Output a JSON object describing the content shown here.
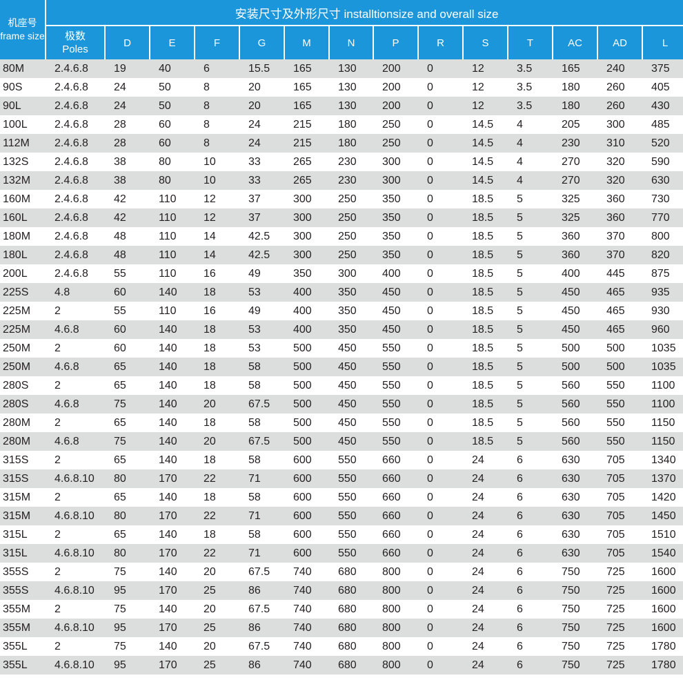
{
  "header": {
    "title": "安装尺寸及外形尺寸 installtionsize and overall size",
    "frame_cn": "机座号",
    "frame_en": "frame size",
    "poles_cn": "极数",
    "poles_en": "Poles",
    "columns": [
      "D",
      "E",
      "F",
      "G",
      "M",
      "N",
      "P",
      "R",
      "S",
      "T",
      "AC",
      "AD",
      "L"
    ]
  },
  "rows": [
    [
      "80M",
      "2.4.6.8",
      "19",
      "40",
      "6",
      "15.5",
      "165",
      "130",
      "200",
      "0",
      "12",
      "3.5",
      "165",
      "240",
      "375"
    ],
    [
      "90S",
      "2.4.6.8",
      "24",
      "50",
      "8",
      "20",
      "165",
      "130",
      "200",
      "0",
      "12",
      "3.5",
      "180",
      "260",
      "405"
    ],
    [
      "90L",
      "2.4.6.8",
      "24",
      "50",
      "8",
      "20",
      "165",
      "130",
      "200",
      "0",
      "12",
      "3.5",
      "180",
      "260",
      "430"
    ],
    [
      "100L",
      "2.4.6.8",
      "28",
      "60",
      "8",
      "24",
      "215",
      "180",
      "250",
      "0",
      "14.5",
      "4",
      "205",
      "300",
      "485"
    ],
    [
      "112M",
      "2.4.6.8",
      "28",
      "60",
      "8",
      "24",
      "215",
      "180",
      "250",
      "0",
      "14.5",
      "4",
      "230",
      "310",
      "520"
    ],
    [
      "132S",
      "2.4.6.8",
      "38",
      "80",
      "10",
      "33",
      "265",
      "230",
      "300",
      "0",
      "14.5",
      "4",
      "270",
      "320",
      "590"
    ],
    [
      "132M",
      "2.4.6.8",
      "38",
      "80",
      "10",
      "33",
      "265",
      "230",
      "300",
      "0",
      "14.5",
      "4",
      "270",
      "320",
      "630"
    ],
    [
      "160M",
      "2.4.6.8",
      "42",
      "110",
      "12",
      "37",
      "300",
      "250",
      "350",
      "0",
      "18.5",
      "5",
      "325",
      "360",
      "730"
    ],
    [
      "160L",
      "2.4.6.8",
      "42",
      "110",
      "12",
      "37",
      "300",
      "250",
      "350",
      "0",
      "18.5",
      "5",
      "325",
      "360",
      "770"
    ],
    [
      "180M",
      "2.4.6.8",
      "48",
      "110",
      "14",
      "42.5",
      "300",
      "250",
      "350",
      "0",
      "18.5",
      "5",
      "360",
      "370",
      "800"
    ],
    [
      "180L",
      "2.4.6.8",
      "48",
      "110",
      "14",
      "42.5",
      "300",
      "250",
      "350",
      "0",
      "18.5",
      "5",
      "360",
      "370",
      "820"
    ],
    [
      "200L",
      "2.4.6.8",
      "55",
      "110",
      "16",
      "49",
      "350",
      "300",
      "400",
      "0",
      "18.5",
      "5",
      "400",
      "445",
      "875"
    ],
    [
      "225S",
      "4.8",
      "60",
      "140",
      "18",
      "53",
      "400",
      "350",
      "450",
      "0",
      "18.5",
      "5",
      "450",
      "465",
      "935"
    ],
    [
      "225M",
      "2",
      "55",
      "110",
      "16",
      "49",
      "400",
      "350",
      "450",
      "0",
      "18.5",
      "5",
      "450",
      "465",
      "930"
    ],
    [
      "225M",
      "4.6.8",
      "60",
      "140",
      "18",
      "53",
      "400",
      "350",
      "450",
      "0",
      "18.5",
      "5",
      "450",
      "465",
      "960"
    ],
    [
      "250M",
      "2",
      "60",
      "140",
      "18",
      "53",
      "500",
      "450",
      "550",
      "0",
      "18.5",
      "5",
      "500",
      "500",
      "1035"
    ],
    [
      "250M",
      "4.6.8",
      "65",
      "140",
      "18",
      "58",
      "500",
      "450",
      "550",
      "0",
      "18.5",
      "5",
      "500",
      "500",
      "1035"
    ],
    [
      "280S",
      "2",
      "65",
      "140",
      "18",
      "58",
      "500",
      "450",
      "550",
      "0",
      "18.5",
      "5",
      "560",
      "550",
      "1100"
    ],
    [
      "280S",
      "4.6.8",
      "75",
      "140",
      "20",
      "67.5",
      "500",
      "450",
      "550",
      "0",
      "18.5",
      "5",
      "560",
      "550",
      "1100"
    ],
    [
      "280M",
      "2",
      "65",
      "140",
      "18",
      "58",
      "500",
      "450",
      "550",
      "0",
      "18.5",
      "5",
      "560",
      "550",
      "1150"
    ],
    [
      "280M",
      "4.6.8",
      "75",
      "140",
      "20",
      "67.5",
      "500",
      "450",
      "550",
      "0",
      "18.5",
      "5",
      "560",
      "550",
      "1150"
    ],
    [
      "315S",
      "2",
      "65",
      "140",
      "18",
      "58",
      "600",
      "550",
      "660",
      "0",
      "24",
      "6",
      "630",
      "705",
      "1340"
    ],
    [
      "315S",
      "4.6.8.10",
      "80",
      "170",
      "22",
      "71",
      "600",
      "550",
      "660",
      "0",
      "24",
      "6",
      "630",
      "705",
      "1370"
    ],
    [
      "315M",
      "2",
      "65",
      "140",
      "18",
      "58",
      "600",
      "550",
      "660",
      "0",
      "24",
      "6",
      "630",
      "705",
      "1420"
    ],
    [
      "315M",
      "4.6.8.10",
      "80",
      "170",
      "22",
      "71",
      "600",
      "550",
      "660",
      "0",
      "24",
      "6",
      "630",
      "705",
      "1450"
    ],
    [
      "315L",
      "2",
      "65",
      "140",
      "18",
      "58",
      "600",
      "550",
      "660",
      "0",
      "24",
      "6",
      "630",
      "705",
      "1510"
    ],
    [
      "315L",
      "4.6.8.10",
      "80",
      "170",
      "22",
      "71",
      "600",
      "550",
      "660",
      "0",
      "24",
      "6",
      "630",
      "705",
      "1540"
    ],
    [
      "355S",
      "2",
      "75",
      "140",
      "20",
      "67.5",
      "740",
      "680",
      "800",
      "0",
      "24",
      "6",
      "750",
      "725",
      "1600"
    ],
    [
      "355S",
      "4.6.8.10",
      "95",
      "170",
      "25",
      "86",
      "740",
      "680",
      "800",
      "0",
      "24",
      "6",
      "750",
      "725",
      "1600"
    ],
    [
      "355M",
      "2",
      "75",
      "140",
      "20",
      "67.5",
      "740",
      "680",
      "800",
      "0",
      "24",
      "6",
      "750",
      "725",
      "1600"
    ],
    [
      "355M",
      "4.6.8.10",
      "95",
      "170",
      "25",
      "86",
      "740",
      "680",
      "800",
      "0",
      "24",
      "6",
      "750",
      "725",
      "1600"
    ],
    [
      "355L",
      "2",
      "75",
      "140",
      "20",
      "67.5",
      "740",
      "680",
      "800",
      "0",
      "24",
      "6",
      "750",
      "725",
      "1780"
    ],
    [
      "355L",
      "4.6.8.10",
      "95",
      "170",
      "25",
      "86",
      "740",
      "680",
      "800",
      "0",
      "24",
      "6",
      "750",
      "725",
      "1780"
    ]
  ],
  "colors": {
    "header_bg": "#1b96da",
    "stripe_bg": "#dcdddd",
    "text": "#231f20"
  }
}
